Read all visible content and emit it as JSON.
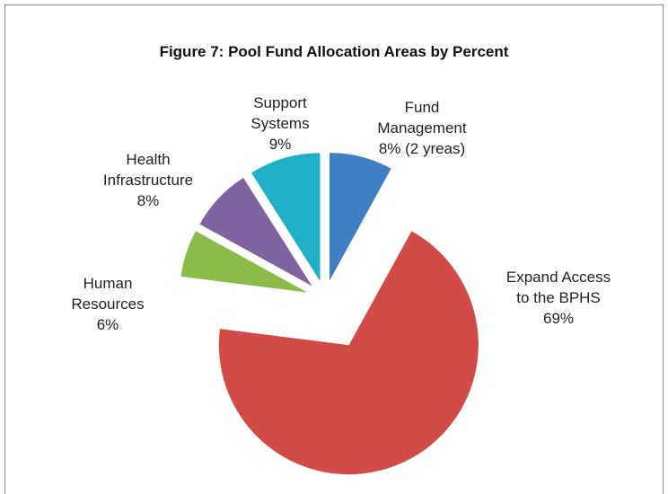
{
  "chart_data": {
    "type": "pie",
    "title": "Figure 7: Pool Fund Allocation Areas by Percent",
    "categories": [
      "Fund Management",
      "Expand Access to the BPHS",
      "Human Resources",
      "Health Infrastructure",
      "Support Systems"
    ],
    "values": [
      8,
      69,
      6,
      8,
      9
    ],
    "value_labels": [
      "8% (2 yreas)",
      "69%",
      "6%",
      "8%",
      "9%"
    ],
    "colors": [
      "#3f7fc3",
      "#d14b47",
      "#8cbb4c",
      "#8064a2",
      "#1fb0c7"
    ]
  }
}
